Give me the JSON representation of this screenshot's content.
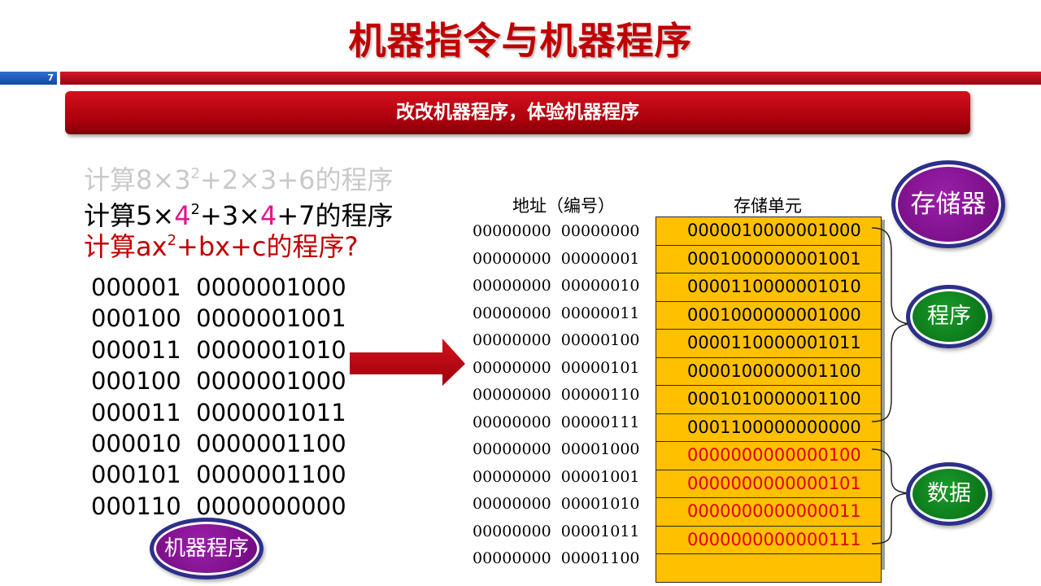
{
  "title": "机器指令与机器程序",
  "page_number": "7",
  "subtitle": "改改机器程序，体验机器程序",
  "tasks": [
    {
      "parts": [
        "计算8",
        "×",
        "3",
        "2",
        "+2×3+6的程序"
      ]
    },
    {
      "parts": [
        "计算5×",
        "4",
        "2",
        "+3×",
        "4",
        "+7的程序"
      ]
    },
    {
      "parts": [
        "计算ax",
        "2",
        "+bx+c的程序?"
      ]
    }
  ],
  "program_lines": [
    "000001  0000001000",
    "000100  0000001001",
    "000011  0000001010",
    "000100  0000001000",
    "000011  0000001011",
    "000010  0000001100",
    "000101  0000001100",
    "000110  0000000000"
  ],
  "labels": {
    "machine_program": "机器程序",
    "memory": "存储器",
    "code": "程序",
    "data": "数据",
    "address_header": "地址（编号）",
    "cell_header": "存储单元"
  },
  "memory": [
    {
      "address": "00000000  00000000",
      "value": "0000010000001000",
      "kind": "program"
    },
    {
      "address": "00000000  00000001",
      "value": "0001000000001001",
      "kind": "program"
    },
    {
      "address": "00000000  00000010",
      "value": "0000110000001010",
      "kind": "program"
    },
    {
      "address": "00000000  00000011",
      "value": "0001000000001000",
      "kind": "program"
    },
    {
      "address": "00000000  00000100",
      "value": "0000110000001011",
      "kind": "program"
    },
    {
      "address": "00000000  00000101",
      "value": "0000100000001100",
      "kind": "program"
    },
    {
      "address": "00000000  00000110",
      "value": "0001010000001100",
      "kind": "program"
    },
    {
      "address": "00000000  00000111",
      "value": "0001100000000000",
      "kind": "program"
    },
    {
      "address": "00000000  00001000",
      "value": "0000000000000100",
      "kind": "data"
    },
    {
      "address": "00000000  00001001",
      "value": "0000000000000101",
      "kind": "data"
    },
    {
      "address": "00000000  00001010",
      "value": "0000000000000011",
      "kind": "data"
    },
    {
      "address": "00000000  00001011",
      "value": "0000000000000111",
      "kind": "data"
    },
    {
      "address": "00000000  00001100",
      "value": "",
      "kind": "empty"
    }
  ],
  "colors": {
    "title": "#c00000",
    "cell_fill": "#ffc000",
    "data_text": "#e00000",
    "highlight": "#e0168c",
    "oval_purple": "#7a0c8a",
    "oval_green": "#0a7a18",
    "arrow": "#c00000"
  }
}
